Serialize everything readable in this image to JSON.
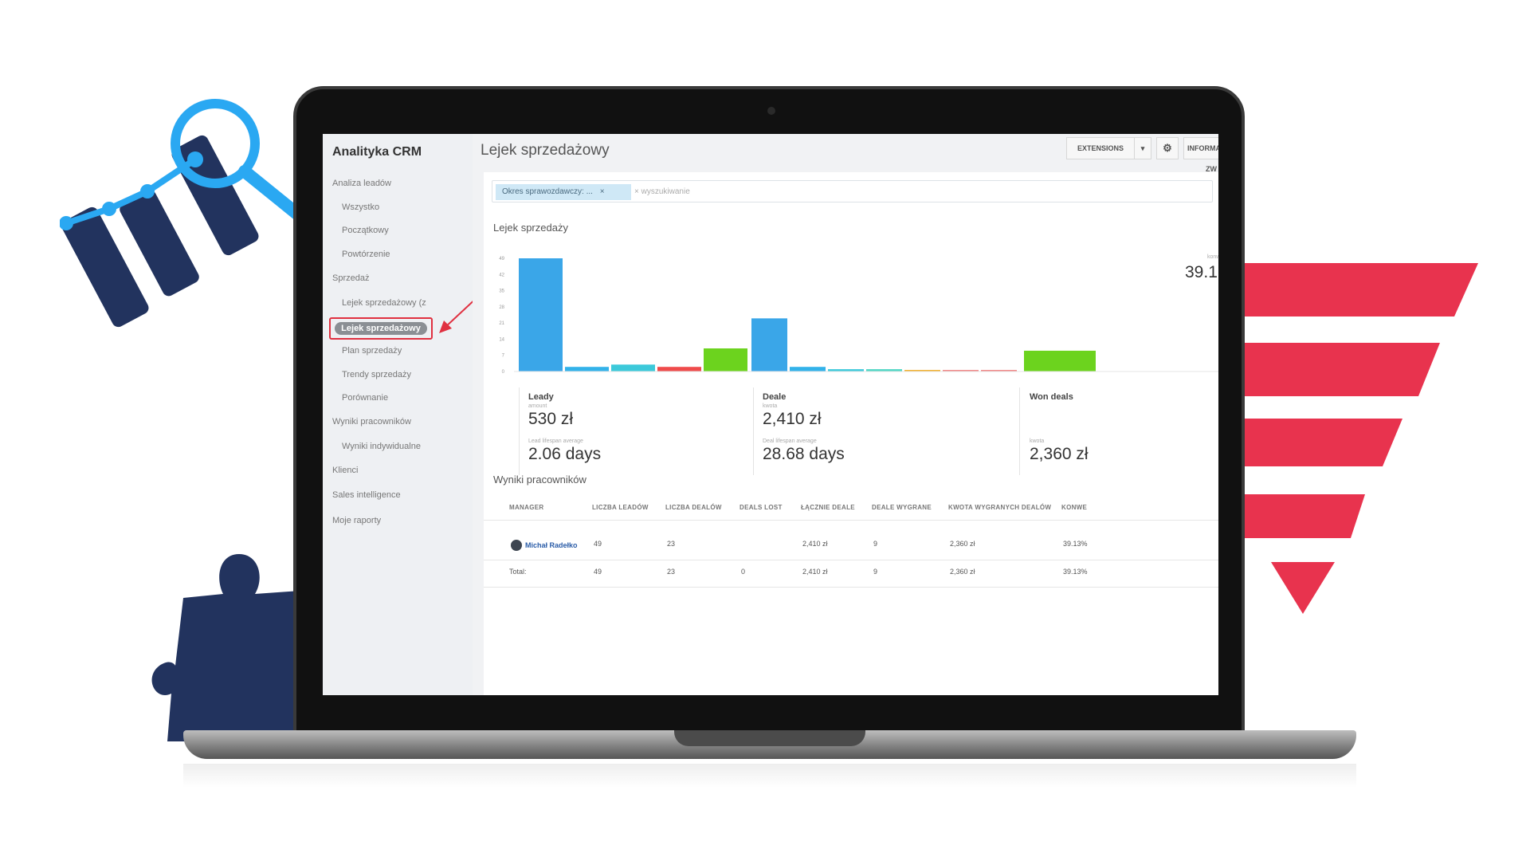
{
  "app": {
    "title": "Analityka CRM",
    "page_title": "Lejek sprzedażowy"
  },
  "toolbar": {
    "extensions_label": "EXTENSIONS",
    "dropdown_icon": "chevron-down-icon",
    "settings_icon": "gear-icon",
    "info_label": "INFORMACJA ZW"
  },
  "sidebar": {
    "items": [
      {
        "label": "Analiza leadów"
      },
      {
        "label": "Wszystko"
      },
      {
        "label": "Początkowy"
      },
      {
        "label": "Powtórzenie"
      },
      {
        "label": "Sprzedaż"
      },
      {
        "label": "Lejek sprzedażowy (z"
      },
      {
        "label": "Lejek sprzedażowy"
      },
      {
        "label": "Plan sprzedaży"
      },
      {
        "label": "Trendy sprzedaży"
      },
      {
        "label": "Porównanie"
      },
      {
        "label": "Wyniki pracowników"
      },
      {
        "label": "Wyniki indywidualne"
      },
      {
        "label": "Klienci"
      },
      {
        "label": "Sales intelligence"
      },
      {
        "label": "Moje raporty"
      }
    ]
  },
  "filter": {
    "tag_label": "Okres sprawozdawczy: ...",
    "tag_close": "×",
    "search_placeholder": "× wyszukiwanie"
  },
  "funnel": {
    "section_title": "Lejek sprzedaży",
    "top_right_label": "konw",
    "top_right_value": "39.1",
    "stages": [
      {
        "label": "Leady",
        "sub_label": "amount",
        "value": "530 zł",
        "sub_label2": "Lead lifespan average",
        "value2": "2.06 days"
      },
      {
        "label": "Deale",
        "sub_label": "kwota",
        "value": "2,410 zł",
        "sub_label2": "Deal lifespan average",
        "value2": "28.68 days"
      },
      {
        "label": "Won deals",
        "sub_label": "",
        "value": "",
        "sub_label2": "kwota",
        "value2": "2,360 zł"
      }
    ]
  },
  "chart_data": {
    "type": "bar",
    "ylim": [
      0,
      49
    ],
    "y_ticks": [
      "49",
      "42",
      "35",
      "28",
      "21",
      "14",
      "7",
      "0"
    ],
    "groups": [
      {
        "name": "Leady",
        "bars": [
          {
            "value": 49,
            "color": "#3aa6e8"
          },
          {
            "value": 2,
            "color": "#33b2e9"
          },
          {
            "value": 3,
            "color": "#3cc9da"
          },
          {
            "value": 2,
            "color": "#ef4b4b"
          },
          {
            "value": 10,
            "color": "#6cd31e"
          }
        ]
      },
      {
        "name": "Deale",
        "bars": [
          {
            "value": 23,
            "color": "#3aa6e8"
          },
          {
            "value": 2,
            "color": "#33b2e9"
          },
          {
            "value": 1,
            "color": "#3cc9da"
          },
          {
            "value": 1,
            "color": "#4fd6c4"
          },
          {
            "value": 0.5,
            "color": "#f2b233"
          },
          {
            "value": 0.5,
            "color": "#f08a8a"
          },
          {
            "value": 0.5,
            "color": "#f08a8a"
          }
        ]
      },
      {
        "name": "Won deals",
        "bars": [
          {
            "value": 9,
            "color": "#6cd31e"
          }
        ]
      }
    ]
  },
  "team": {
    "section_title": "Wyniki pracowników",
    "columns": [
      "MANAGER",
      "LICZBA LEADÓW",
      "LICZBA DEALÓW",
      "DEALS LOST",
      "ŁĄCZNIE DEALE",
      "DEALE WYGRANE",
      "KWOTA WYGRANYCH DEALÓW",
      "KONWE"
    ],
    "rows": [
      [
        "Michał Radełko",
        "49",
        "23",
        "",
        "2,410 zł",
        "9",
        "2,360 zł",
        "39.13%"
      ]
    ],
    "total": [
      "Total:",
      "49",
      "23",
      "0",
      "2,410 zł",
      "9",
      "2,360 zł",
      "39.13%"
    ]
  },
  "colors": {
    "accent_blue": "#3aa6e8",
    "accent_green": "#6cd31e",
    "highlight_red": "#e03040",
    "deco_navy": "#22335e",
    "deco_blue": "#2aa8f2",
    "deco_red": "#e8334e"
  }
}
